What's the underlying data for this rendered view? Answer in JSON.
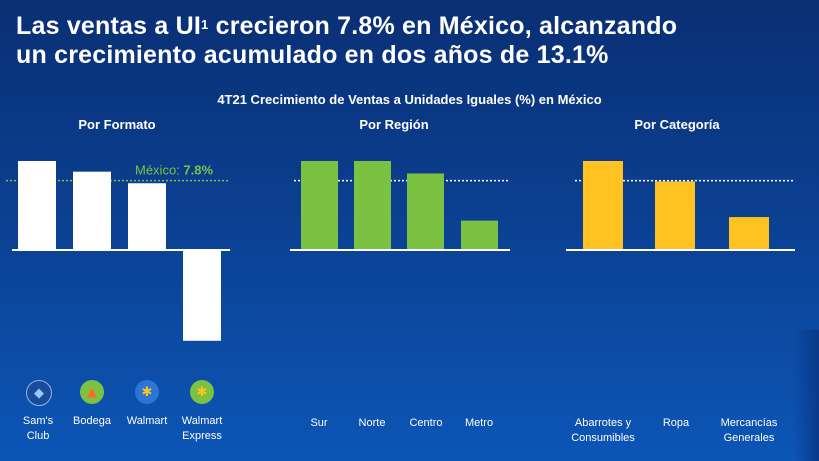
{
  "headline": {
    "line1_pre": "Las ventas a UI",
    "line1_sup": "1",
    "line1_post": " crecieron 7.8% en México, alcanzando",
    "line2": "un crecimiento acumulado en dos años de 13.1%"
  },
  "colors": {
    "formato": "#ffffff",
    "region": "#7cc242",
    "categoria": "#ffc220",
    "mexico_line": "#7cc242",
    "reference_line": "#ffffff"
  },
  "chart_data": [
    {
      "type": "bar",
      "title": "Por Formato",
      "categories": [
        "Sam's Club",
        "Bodega",
        "Walmart",
        "Walmart Express"
      ],
      "values": [
        10.0,
        8.8,
        7.5,
        -10.2
      ],
      "reference_line": {
        "label": "México:",
        "value_label": "7.8%",
        "value": 7.8
      },
      "icons": [
        "sams-club-icon",
        "bodega-icon",
        "walmart-spark-icon",
        "walmart-express-icon"
      ]
    },
    {
      "type": "bar",
      "title": "Por Región",
      "categories": [
        "Sur",
        "Norte",
        "Centro",
        "Metro"
      ],
      "values": [
        10.0,
        10.0,
        8.6,
        3.3
      ],
      "reference_line": {
        "value": 7.8
      }
    },
    {
      "type": "bar",
      "title": "Por Categoría",
      "categories": [
        "Abarrotes y Consumibles",
        "Ropa",
        "Mercancías Generales"
      ],
      "values": [
        10.0,
        7.7,
        3.7
      ],
      "reference_line": {
        "value": 7.8
      }
    }
  ],
  "subtitle": "4T21 Crecimiento de Ventas a Unidades Iguales (%) en México"
}
